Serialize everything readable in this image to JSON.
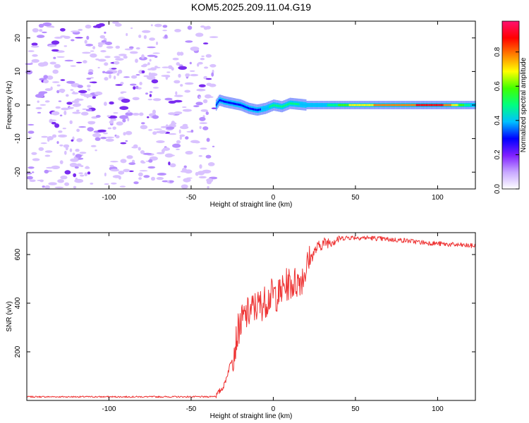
{
  "title": "KOM5.2025.209.11.04.G19",
  "chart_data": [
    {
      "type": "heatmap",
      "title": "KOM5.2025.209.11.04.G19",
      "xlabel": "Height of straight line (km)",
      "ylabel": "Frequency (Hz)",
      "xlim": [
        -150,
        123
      ],
      "ylim": [
        -25,
        25
      ],
      "xticks": [
        "-100",
        "-50",
        "0",
        "50",
        "100"
      ],
      "yticks": [
        "20",
        "10",
        "0",
        "-10",
        "-20"
      ],
      "colorbar": {
        "label": "Normalized spectral amplitude",
        "range": [
          0,
          0.98
        ],
        "ticks": [
          "0.0",
          "0.2",
          "0.4",
          "0.6",
          "0.8"
        ],
        "colors": [
          "#ffffff",
          "#c8a8ff",
          "#8020ff",
          "#0000ff",
          "#00c0ff",
          "#00ff80",
          "#40ff00",
          "#ffff00",
          "#ff8000",
          "#ff0000",
          "#ff1070"
        ]
      },
      "noise_region": {
        "x": [
          -150,
          -35
        ],
        "freq": [
          -25,
          25
        ],
        "amplitude": [
          0.02,
          0.2
        ]
      },
      "signal_ridge": {
        "x": [
          -35,
          -33,
          -30,
          -25,
          -20,
          -15,
          -10,
          -5,
          0,
          5,
          10,
          20,
          30,
          50,
          80,
          100,
          110,
          123
        ],
        "freq": [
          0,
          1.5,
          1,
          0.5,
          0,
          -1,
          -1.5,
          -1,
          0,
          -0.5,
          0.5,
          0,
          0,
          0,
          0,
          0,
          0,
          0
        ],
        "amplitude": [
          0.25,
          0.3,
          0.3,
          0.3,
          0.3,
          0.3,
          0.3,
          0.4,
          0.5,
          0.5,
          0.5,
          0.4,
          0.4,
          0.7,
          0.8,
          0.9,
          0.7,
          0.35
        ]
      }
    },
    {
      "type": "line",
      "xlabel": "Height of straight line (km)",
      "ylabel": "SNR (v/v)",
      "xlim": [
        -150,
        123
      ],
      "ylim": [
        0,
        690
      ],
      "xticks": [
        "-100",
        "-50",
        "0",
        "50",
        "100"
      ],
      "yticks": [
        "200",
        "400",
        "600"
      ],
      "color": "#ee3333",
      "x": [
        -150,
        -140,
        -120,
        -100,
        -80,
        -60,
        -40,
        -35,
        -30,
        -27,
        -24,
        -21,
        -18,
        -15,
        -12,
        -9,
        -6,
        -3,
        0,
        3,
        6,
        9,
        12,
        15,
        18,
        21,
        24,
        27,
        30,
        35,
        40,
        45,
        50,
        60,
        70,
        80,
        90,
        100,
        110,
        123
      ],
      "y": [
        15,
        15,
        15,
        15,
        15,
        15,
        15,
        18,
        60,
        130,
        200,
        300,
        340,
        360,
        380,
        390,
        400,
        420,
        440,
        430,
        460,
        480,
        480,
        490,
        510,
        560,
        600,
        630,
        645,
        655,
        665,
        670,
        670,
        668,
        662,
        658,
        650,
        645,
        640,
        635
      ]
    }
  ]
}
